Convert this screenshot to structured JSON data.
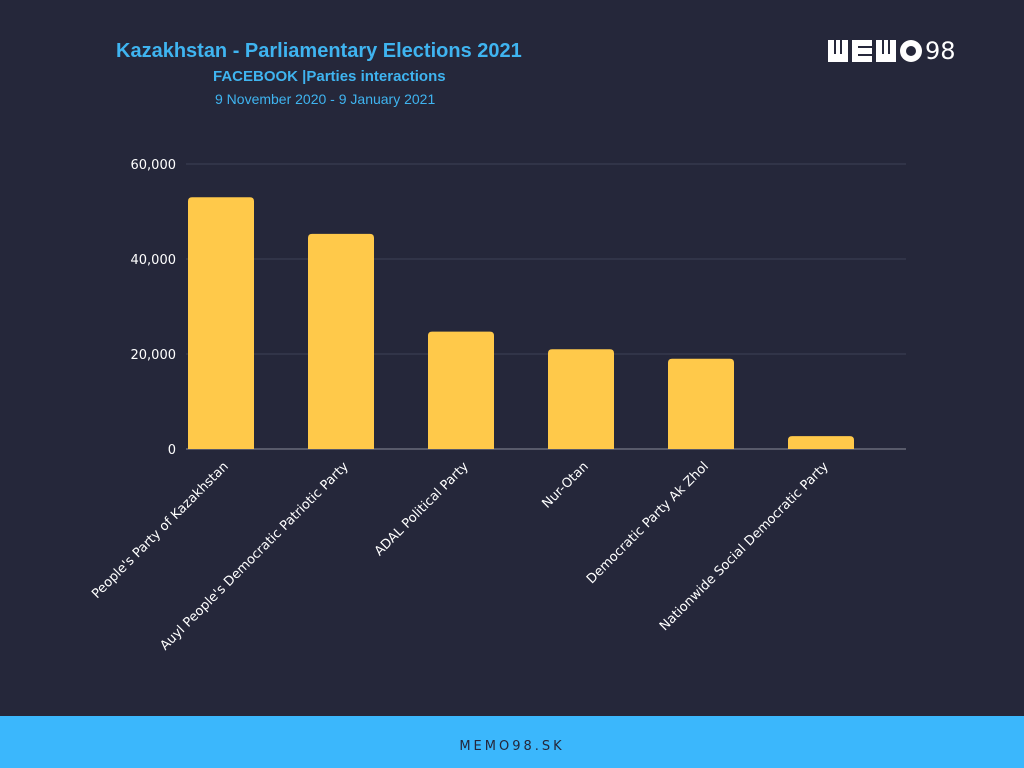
{
  "header": {
    "title": "Kazakhstan - Parliamentary Elections 2021",
    "subtitle": "FACEBOOK |Parties interactions",
    "date_range": "9 November 2020 - 9 January 2021"
  },
  "logo": {
    "letters": "MEMO",
    "number": "98"
  },
  "footer": {
    "text": "MEMO98.SK"
  },
  "colors": {
    "background": "#25273a",
    "bar": "#ffc94a",
    "accent": "#3fb4f0",
    "footer": "#3bb7fc"
  },
  "chart_data": {
    "type": "bar",
    "categories": [
      "People's Party of Kazakhstan",
      "Auyl People's Democratic Patriotic Party",
      "ADAL Political Party",
      "Nur-Otan",
      "Democratic Party Ak Zhol",
      "Nationwide Social Democratic Party"
    ],
    "values": [
      53000,
      45300,
      24700,
      21000,
      19000,
      2700
    ],
    "yticks": [
      "0",
      "20,000",
      "40,000",
      "60,000"
    ],
    "ylim": [
      0,
      60000
    ],
    "grid": true,
    "legend": "none"
  }
}
